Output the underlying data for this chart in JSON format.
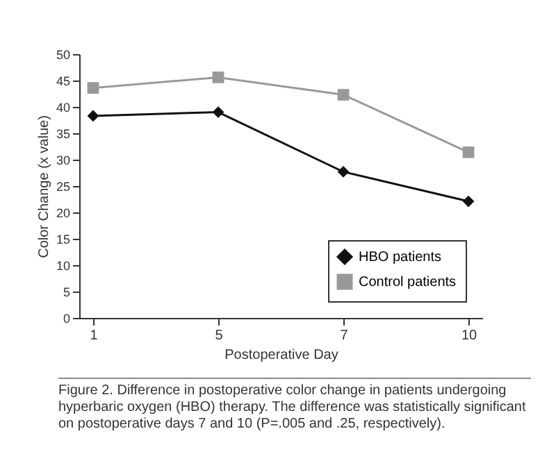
{
  "chart_data": {
    "type": "line",
    "categories": [
      "1",
      "5",
      "7",
      "10"
    ],
    "xlabel": "Postoperative Day",
    "ylabel": "Color Change (x value)",
    "ylim": [
      0,
      50
    ],
    "yticks": [
      0,
      5,
      10,
      15,
      20,
      25,
      30,
      35,
      40,
      45,
      50
    ],
    "grid": false,
    "legend": "bottom right",
    "series": [
      {
        "name": "HBO patients",
        "color": "#111111",
        "marker": "diamond",
        "values": [
          38.3,
          39.0,
          27.7,
          22.1
        ]
      },
      {
        "name": "Control patients",
        "color": "#999999",
        "marker": "square",
        "values": [
          43.6,
          45.6,
          42.3,
          31.4
        ]
      }
    ],
    "annotations": [
      "Figure 2. Difference in postoperative color change in patients undergoing hyperbaric oxygen (HBO) therapy. The difference was statistically significant on postoperative days 7 and 10 (P=.005 and .25, respectively)."
    ]
  }
}
